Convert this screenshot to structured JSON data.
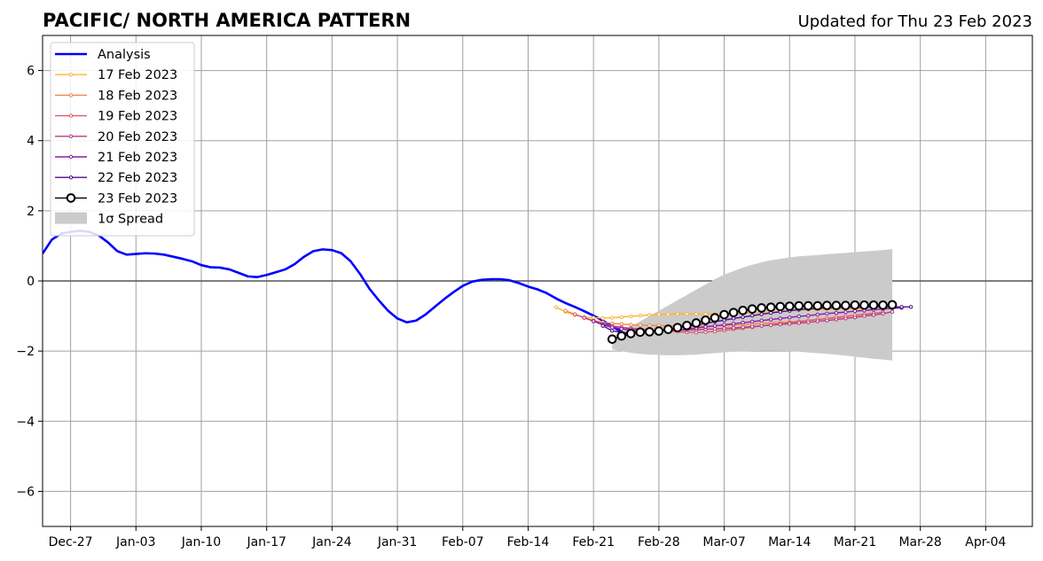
{
  "chart_data": {
    "type": "line",
    "title": "PACIFIC/ NORTH AMERICA PATTERN",
    "subtitle": "Updated for Thu 23 Feb 2023",
    "xlabel": "",
    "ylabel": "",
    "xlim": [
      "2022-12-24",
      "2023-04-09"
    ],
    "ylim": [
      -7,
      7
    ],
    "grid": true,
    "legend_position": "top-left",
    "x_ticks": [
      {
        "date": "2022-12-27",
        "label": "Dec-27"
      },
      {
        "date": "2023-01-03",
        "label": "Jan-03"
      },
      {
        "date": "2023-01-10",
        "label": "Jan-10"
      },
      {
        "date": "2023-01-17",
        "label": "Jan-17"
      },
      {
        "date": "2023-01-24",
        "label": "Jan-24"
      },
      {
        "date": "2023-01-31",
        "label": "Jan-31"
      },
      {
        "date": "2023-02-07",
        "label": "Feb-07"
      },
      {
        "date": "2023-02-14",
        "label": "Feb-14"
      },
      {
        "date": "2023-02-21",
        "label": "Feb-21"
      },
      {
        "date": "2023-02-28",
        "label": "Feb-28"
      },
      {
        "date": "2023-03-07",
        "label": "Mar-07"
      },
      {
        "date": "2023-03-14",
        "label": "Mar-14"
      },
      {
        "date": "2023-03-21",
        "label": "Mar-21"
      },
      {
        "date": "2023-03-28",
        "label": "Mar-28"
      },
      {
        "date": "2023-04-04",
        "label": "Apr-04"
      }
    ],
    "y_ticks": [
      {
        "value": -6,
        "label": "−6"
      },
      {
        "value": -4,
        "label": "−4"
      },
      {
        "value": -2,
        "label": "−2"
      },
      {
        "value": 0,
        "label": "0"
      },
      {
        "value": 2,
        "label": "2"
      },
      {
        "value": 4,
        "label": "4"
      },
      {
        "value": 6,
        "label": "6"
      }
    ],
    "analysis": {
      "name": "Analysis",
      "color": "#0000ff",
      "start_date": "2022-12-24",
      "values": [
        0.78,
        1.18,
        1.35,
        1.4,
        1.43,
        1.4,
        1.3,
        1.1,
        0.85,
        0.75,
        0.77,
        0.79,
        0.78,
        0.75,
        0.69,
        0.63,
        0.56,
        0.45,
        0.39,
        0.38,
        0.33,
        0.23,
        0.13,
        0.11,
        0.17,
        0.25,
        0.33,
        0.48,
        0.69,
        0.85,
        0.9,
        0.88,
        0.79,
        0.56,
        0.2,
        -0.22,
        -0.55,
        -0.85,
        -1.07,
        -1.18,
        -1.13,
        -0.96,
        -0.74,
        -0.52,
        -0.32,
        -0.14,
        -0.02,
        0.03,
        0.05,
        0.05,
        0.02,
        -0.06,
        -0.16,
        -0.24,
        -0.35,
        -0.5,
        -0.63,
        -0.74,
        -0.86,
        -0.99,
        -1.13,
        -1.3,
        -1.45,
        -1.6
      ]
    },
    "forecasts": [
      {
        "name": "17 Feb 2023",
        "color": "#fbb43a",
        "start_date": "2023-02-17",
        "values": [
          -0.75,
          -0.88,
          -0.97,
          -1.03,
          -1.05,
          -1.06,
          -1.05,
          -1.03,
          -1.01,
          -0.99,
          -0.97,
          -0.96,
          -0.95,
          -0.94,
          -0.94,
          -0.94,
          -0.94,
          -0.94,
          -0.94,
          -0.93,
          -0.92,
          -0.91,
          -0.9,
          -0.88,
          -0.87,
          -0.85,
          -0.83,
          -0.82,
          -0.81,
          -0.8,
          -0.79,
          -0.79,
          -0.79,
          -0.79
        ]
      },
      {
        "name": "18 Feb 2023",
        "color": "#f3854a",
        "start_date": "2023-02-18",
        "values": [
          -0.85,
          -0.95,
          -1.05,
          -1.13,
          -1.18,
          -1.21,
          -1.23,
          -1.25,
          -1.26,
          -1.27,
          -1.27,
          -1.28,
          -1.28,
          -1.29,
          -1.29,
          -1.29,
          -1.28,
          -1.27,
          -1.26,
          -1.24,
          -1.23,
          -1.21,
          -1.2,
          -1.18,
          -1.17,
          -1.15,
          -1.13,
          -1.1,
          -1.08,
          -1.05,
          -1.02,
          -0.99,
          -0.96,
          -0.93
        ]
      },
      {
        "name": "19 Feb 2023",
        "color": "#de5a6b",
        "start_date": "2023-02-19",
        "values": [
          -0.95,
          -1.05,
          -1.15,
          -1.23,
          -1.28,
          -1.32,
          -1.35,
          -1.37,
          -1.39,
          -1.41,
          -1.43,
          -1.45,
          -1.46,
          -1.47,
          -1.46,
          -1.44,
          -1.41,
          -1.38,
          -1.35,
          -1.32,
          -1.28,
          -1.25,
          -1.22,
          -1.19,
          -1.16,
          -1.13,
          -1.1,
          -1.07,
          -1.04,
          -1.01,
          -0.98,
          -0.95,
          -0.92,
          -0.89
        ]
      },
      {
        "name": "20 Feb 2023",
        "color": "#b83b84",
        "start_date": "2023-02-20",
        "values": [
          -1.05,
          -1.14,
          -1.23,
          -1.29,
          -1.33,
          -1.36,
          -1.38,
          -1.4,
          -1.41,
          -1.41,
          -1.41,
          -1.4,
          -1.39,
          -1.38,
          -1.37,
          -1.35,
          -1.34,
          -1.32,
          -1.3,
          -1.28,
          -1.26,
          -1.24,
          -1.22,
          -1.2,
          -1.18,
          -1.15,
          -1.13,
          -1.1,
          -1.07,
          -1.04,
          -1.0,
          -0.97,
          -0.93,
          -0.88
        ]
      },
      {
        "name": "21 Feb 2023",
        "color": "#8b1aa5",
        "start_date": "2023-02-21",
        "values": [
          -1.15,
          -1.25,
          -1.33,
          -1.37,
          -1.4,
          -1.42,
          -1.43,
          -1.43,
          -1.42,
          -1.4,
          -1.37,
          -1.34,
          -1.31,
          -1.28,
          -1.25,
          -1.22,
          -1.19,
          -1.16,
          -1.13,
          -1.1,
          -1.07,
          -1.04,
          -1.01,
          -0.99,
          -0.96,
          -0.93,
          -0.91,
          -0.89,
          -0.86,
          -0.84,
          -0.82,
          -0.8,
          -0.78,
          -0.77
        ]
      },
      {
        "name": "22 Feb 2023",
        "color": "#4d0d8c",
        "start_date": "2023-02-22",
        "values": [
          -1.28,
          -1.42,
          -1.47,
          -1.48,
          -1.47,
          -1.45,
          -1.42,
          -1.38,
          -1.34,
          -1.3,
          -1.25,
          -1.21,
          -1.16,
          -1.12,
          -1.07,
          -1.03,
          -0.99,
          -0.95,
          -0.91,
          -0.88,
          -0.85,
          -0.82,
          -0.8,
          -0.78,
          -0.77,
          -0.76,
          -0.75,
          -0.75,
          -0.75,
          -0.74,
          -0.74,
          -0.74,
          -0.74,
          -0.74
        ]
      }
    ],
    "current": {
      "name": "23 Feb 2023",
      "color": "#000000",
      "start_date": "2023-02-23",
      "values": [
        -1.66,
        -1.57,
        -1.5,
        -1.46,
        -1.45,
        -1.43,
        -1.38,
        -1.33,
        -1.27,
        -1.2,
        -1.12,
        -1.05,
        -0.96,
        -0.9,
        -0.84,
        -0.8,
        -0.77,
        -0.75,
        -0.73,
        -0.72,
        -0.71,
        -0.71,
        -0.71,
        -0.7,
        -0.7,
        -0.7,
        -0.69,
        -0.69,
        -0.69,
        -0.69,
        -0.68
      ]
    },
    "spread": {
      "name": "1σ Spread",
      "color": "#cbcbcb",
      "start_date": "2023-02-23",
      "upper": [
        -1.6,
        -1.45,
        -1.3,
        -1.15,
        -1.0,
        -0.85,
        -0.7,
        -0.55,
        -0.4,
        -0.25,
        -0.1,
        0.05,
        0.18,
        0.28,
        0.38,
        0.46,
        0.53,
        0.59,
        0.63,
        0.67,
        0.7,
        0.72,
        0.74,
        0.76,
        0.78,
        0.8,
        0.82,
        0.84,
        0.86,
        0.88,
        0.91
      ],
      "lower": [
        -1.95,
        -2.0,
        -2.05,
        -2.08,
        -2.1,
        -2.11,
        -2.12,
        -2.12,
        -2.11,
        -2.1,
        -2.08,
        -2.06,
        -2.04,
        -2.02,
        -2.01,
        -2.0,
        -1.99,
        -1.99,
        -1.99,
        -2.0,
        -2.02,
        -2.04,
        -2.06,
        -2.08,
        -2.1,
        -2.13,
        -2.16,
        -2.19,
        -2.22,
        -2.24,
        -2.27
      ]
    }
  }
}
